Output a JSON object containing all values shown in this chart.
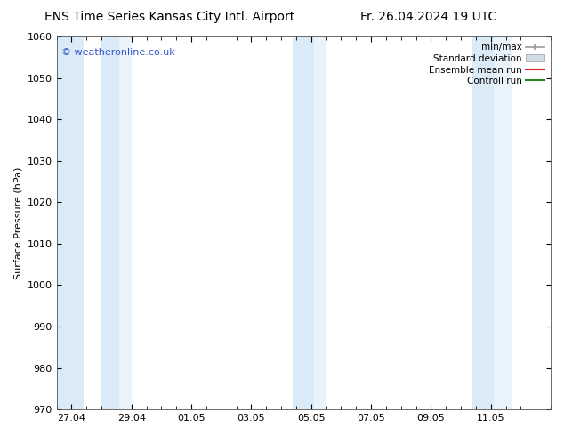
{
  "title_left": "ENS Time Series Kansas City Intl. Airport",
  "title_right": "Fr. 26.04.2024 19 UTC",
  "ylabel": "Surface Pressure (hPa)",
  "watermark": "© weatheronline.co.uk",
  "watermark_color": "#3355cc",
  "ylim": [
    970,
    1060
  ],
  "yticks": [
    970,
    980,
    990,
    1000,
    1010,
    1020,
    1030,
    1040,
    1050,
    1060
  ],
  "xlim": [
    0,
    16.5
  ],
  "xtick_labels": [
    "27.04",
    "29.04",
    "01.05",
    "03.05",
    "05.05",
    "07.05",
    "09.05",
    "11.05"
  ],
  "xtick_positions": [
    0.5,
    2.5,
    4.5,
    6.5,
    8.5,
    10.5,
    12.5,
    14.5
  ],
  "shaded_bands": [
    {
      "x_start": 0.0,
      "x_end": 0.9,
      "color": "#daeaf6",
      "alpha": 1.0
    },
    {
      "x_start": 1.5,
      "x_end": 2.1,
      "color": "#daeaf6",
      "alpha": 1.0
    },
    {
      "x_start": 2.1,
      "x_end": 2.5,
      "color": "#e8f3fb",
      "alpha": 1.0
    },
    {
      "x_start": 7.9,
      "x_end": 8.6,
      "color": "#daeaf6",
      "alpha": 1.0
    },
    {
      "x_start": 8.6,
      "x_end": 9.0,
      "color": "#e8f3fb",
      "alpha": 1.0
    },
    {
      "x_start": 13.9,
      "x_end": 14.6,
      "color": "#daeaf6",
      "alpha": 1.0
    },
    {
      "x_start": 14.6,
      "x_end": 15.2,
      "color": "#e8f3fb",
      "alpha": 1.0
    }
  ],
  "background_color": "#ffffff",
  "title_fontsize": 10,
  "axis_label_fontsize": 8,
  "tick_fontsize": 8
}
